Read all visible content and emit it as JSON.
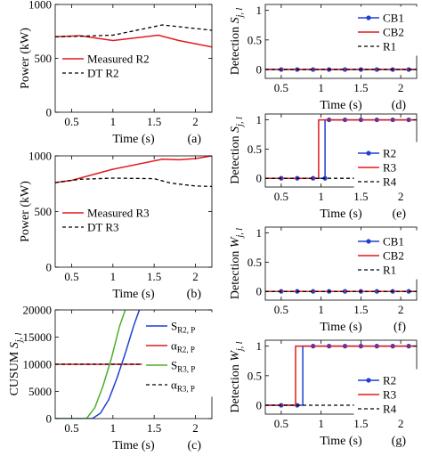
{
  "chart_data": [
    {
      "id": "a",
      "type": "line",
      "panel_label": "(a)",
      "xlabel": "Time (s)",
      "ylabel": "Power (kW)",
      "xlim": [
        0.3,
        2.2
      ],
      "ylim": [
        0,
        1000
      ],
      "xticks": [
        0.5,
        1,
        1.5,
        2
      ],
      "xticklabels": [
        "0.5",
        "1",
        "1.5",
        "2"
      ],
      "yticks": [
        0,
        500,
        1000
      ],
      "yticklabels": [
        "0",
        "500",
        "1000"
      ],
      "grid": false,
      "legend": "bottom-center",
      "series": [
        {
          "name": "Measured R2",
          "color": "#e31a1c",
          "style": "solid",
          "x": [
            0.3,
            0.6,
            1.0,
            1.55,
            1.8,
            2.2
          ],
          "y": [
            700,
            710,
            665,
            715,
            665,
            605
          ]
        },
        {
          "name": "DT R2",
          "color": "#000000",
          "style": "dashed",
          "x": [
            0.3,
            0.6,
            1.0,
            1.6,
            2.2
          ],
          "y": [
            700,
            705,
            715,
            810,
            760
          ]
        }
      ]
    },
    {
      "id": "b",
      "type": "line",
      "panel_label": "(b)",
      "xlabel": "Time (s)",
      "ylabel": "Power (kW)",
      "xlim": [
        0.3,
        2.2
      ],
      "ylim": [
        0,
        1000
      ],
      "xticks": [
        0.5,
        1,
        1.5,
        2
      ],
      "xticklabels": [
        "0.5",
        "1",
        "1.5",
        "2"
      ],
      "yticks": [
        0,
        500,
        1000
      ],
      "yticklabels": [
        "0",
        "500",
        "1000"
      ],
      "grid": false,
      "legend": "bottom-center",
      "series": [
        {
          "name": "Measured R3",
          "color": "#e31a1c",
          "style": "solid",
          "x": [
            0.3,
            0.5,
            1.0,
            1.6,
            1.8,
            2.0,
            2.2
          ],
          "y": [
            760,
            780,
            880,
            970,
            965,
            975,
            1000
          ]
        },
        {
          "name": "DT R3",
          "color": "#000000",
          "style": "dashed",
          "x": [
            0.3,
            0.6,
            1.0,
            1.5,
            1.7,
            2.0,
            2.2
          ],
          "y": [
            760,
            790,
            800,
            795,
            755,
            730,
            725
          ]
        }
      ]
    },
    {
      "id": "c",
      "type": "line",
      "panel_label": "(c)",
      "xlabel": "Time (s)",
      "ylabel": "CUSUM ",
      "ylabel_sym": "S",
      "ylabel_sub": "j, l",
      "xlim": [
        0.3,
        2.2
      ],
      "ylim": [
        0,
        20000
      ],
      "xticks": [
        0.5,
        1,
        1.5,
        2
      ],
      "xticklabels": [
        "0.5",
        "1",
        "1.5",
        "2"
      ],
      "yticks": [
        0,
        5000,
        10000,
        15000,
        20000
      ],
      "yticklabels": [
        "0",
        "5000",
        "10000",
        "15000",
        "20000"
      ],
      "grid": false,
      "legend": "right",
      "series": [
        {
          "name": "S",
          "sub": "R2, P",
          "color": "#1f3fd4",
          "style": "solid",
          "x": [
            0.3,
            0.75,
            0.85,
            0.95,
            1.05,
            1.15,
            1.25,
            1.32
          ],
          "y": [
            0,
            0,
            1000,
            3500,
            7500,
            12000,
            17000,
            20000
          ]
        },
        {
          "name": "α",
          "sub": "R2, P",
          "color": "#e31a1c",
          "style": "solid",
          "x": [
            0.3,
            2.2
          ],
          "y": [
            10000,
            10000
          ]
        },
        {
          "name": "S",
          "sub": "R3, P",
          "color": "#4caf2a",
          "style": "solid",
          "x": [
            0.3,
            0.68,
            0.78,
            0.88,
            0.98,
            1.08,
            1.15
          ],
          "y": [
            0,
            0,
            2000,
            6000,
            11000,
            17000,
            20000
          ]
        },
        {
          "name": "α",
          "sub": "R3, P",
          "color": "#000000",
          "style": "dashed",
          "x": [
            0.3,
            2.2
          ],
          "y": [
            10000,
            10000
          ]
        }
      ]
    },
    {
      "id": "d",
      "type": "line",
      "panel_label": "(d)",
      "xlabel": "Time (s)",
      "ylabel": "Detection ",
      "ylabel_sym": "S",
      "ylabel_sub": "j, l",
      "xlim": [
        0.3,
        2.2
      ],
      "ylim": [
        -0.15,
        1.1
      ],
      "xticks": [
        0.5,
        1,
        1.5,
        2
      ],
      "xticklabels": [
        "0.5",
        "1",
        "1.5",
        "2"
      ],
      "yticks": [
        0,
        0.5,
        1
      ],
      "yticklabels": [
        "0",
        "0.5",
        "1"
      ],
      "grid": false,
      "legend": "top-right",
      "series": [
        {
          "name": "CB1",
          "color": "#1f3fd4",
          "style": "solid",
          "marker": "o",
          "x": [
            0.3,
            0.5,
            0.7,
            0.9,
            1.1,
            1.3,
            1.5,
            1.7,
            1.9,
            2.1,
            2.2
          ],
          "y": [
            0,
            0,
            0,
            0,
            0,
            0,
            0,
            0,
            0,
            0,
            0
          ]
        },
        {
          "name": "CB2",
          "color": "#e31a1c",
          "style": "solid",
          "x": [
            0.3,
            2.2
          ],
          "y": [
            0,
            0
          ]
        },
        {
          "name": "R1",
          "color": "#000000",
          "style": "dashed",
          "x": [
            0.3,
            2.2
          ],
          "y": [
            0,
            0
          ]
        }
      ]
    },
    {
      "id": "e",
      "type": "line",
      "panel_label": "(e)",
      "xlabel": "Time (s)",
      "ylabel": "Detection ",
      "ylabel_sym": "S",
      "ylabel_sub": "j, l",
      "xlim": [
        0.3,
        2.2
      ],
      "ylim": [
        -0.15,
        1.1
      ],
      "xticks": [
        0.5,
        1,
        1.5,
        2
      ],
      "xticklabels": [
        "0.5",
        "1",
        "1.5",
        "2"
      ],
      "yticks": [
        0,
        0.5,
        1
      ],
      "yticklabels": [
        "0",
        "0.5",
        "1"
      ],
      "grid": false,
      "legend": "bottom-right",
      "series": [
        {
          "name": "R2",
          "color": "#1f3fd4",
          "style": "solid",
          "marker": "o",
          "x": [
            0.3,
            0.5,
            0.7,
            0.9,
            1.05,
            1.05,
            1.1,
            1.3,
            1.5,
            1.7,
            1.9,
            2.1,
            2.2
          ],
          "y": [
            0,
            0,
            0,
            0,
            0,
            1,
            1,
            1,
            1,
            1,
            1,
            1,
            1
          ]
        },
        {
          "name": "R3",
          "color": "#e31a1c",
          "style": "solid",
          "x": [
            0.3,
            0.97,
            0.97,
            2.2
          ],
          "y": [
            0,
            0,
            1,
            1
          ]
        },
        {
          "name": "R4",
          "color": "#000000",
          "style": "dashed",
          "x": [
            0.3,
            2.2
          ],
          "y": [
            0,
            0
          ]
        }
      ]
    },
    {
      "id": "f",
      "type": "line",
      "panel_label": "(f)",
      "xlabel": "Time (s)",
      "ylabel": "Detection ",
      "ylabel_sym": "W",
      "ylabel_sub": "j, l",
      "xlim": [
        0.3,
        2.2
      ],
      "ylim": [
        -0.15,
        1.1
      ],
      "xticks": [
        0.5,
        1,
        1.5,
        2
      ],
      "xticklabels": [
        "0.5",
        "1",
        "1.5",
        "2"
      ],
      "yticks": [
        0,
        0.5,
        1
      ],
      "yticklabels": [
        "0",
        "0.5",
        "1"
      ],
      "grid": false,
      "legend": "top-right",
      "series": [
        {
          "name": "CB1",
          "color": "#1f3fd4",
          "style": "solid",
          "marker": "o",
          "x": [
            0.3,
            0.5,
            0.7,
            0.9,
            1.1,
            1.3,
            1.5,
            1.7,
            1.9,
            2.1,
            2.2
          ],
          "y": [
            0,
            0,
            0,
            0,
            0,
            0,
            0,
            0,
            0,
            0,
            0
          ]
        },
        {
          "name": "CB2",
          "color": "#e31a1c",
          "style": "solid",
          "x": [
            0.3,
            2.2
          ],
          "y": [
            0,
            0
          ]
        },
        {
          "name": "R1",
          "color": "#000000",
          "style": "dashed",
          "x": [
            0.3,
            2.2
          ],
          "y": [
            0,
            0
          ]
        }
      ]
    },
    {
      "id": "g",
      "type": "line",
      "panel_label": "(g)",
      "xlabel": "Time (s)",
      "ylabel": "Detection ",
      "ylabel_sym": "W",
      "ylabel_sub": "j, l",
      "xlim": [
        0.3,
        2.2
      ],
      "ylim": [
        -0.15,
        1.1
      ],
      "xticks": [
        0.5,
        1,
        1.5,
        2
      ],
      "xticklabels": [
        "0.5",
        "1",
        "1.5",
        "2"
      ],
      "yticks": [
        0,
        0.5,
        1
      ],
      "yticklabels": [
        "0",
        "0.5",
        "1"
      ],
      "grid": false,
      "legend": "bottom-right",
      "series": [
        {
          "name": "R2",
          "color": "#1f3fd4",
          "style": "solid",
          "marker": "o",
          "x": [
            0.3,
            0.5,
            0.7,
            0.77,
            0.77,
            0.9,
            1.1,
            1.3,
            1.5,
            1.7,
            1.9,
            2.1,
            2.2
          ],
          "y": [
            0,
            0,
            0,
            0,
            1,
            1,
            1,
            1,
            1,
            1,
            1,
            1,
            1
          ]
        },
        {
          "name": "R3",
          "color": "#e31a1c",
          "style": "solid",
          "x": [
            0.3,
            0.68,
            0.68,
            2.2
          ],
          "y": [
            0,
            0,
            1,
            1
          ]
        },
        {
          "name": "R4",
          "color": "#000000",
          "style": "dashed",
          "x": [
            0.3,
            2.2
          ],
          "y": [
            0,
            0
          ]
        }
      ]
    }
  ]
}
